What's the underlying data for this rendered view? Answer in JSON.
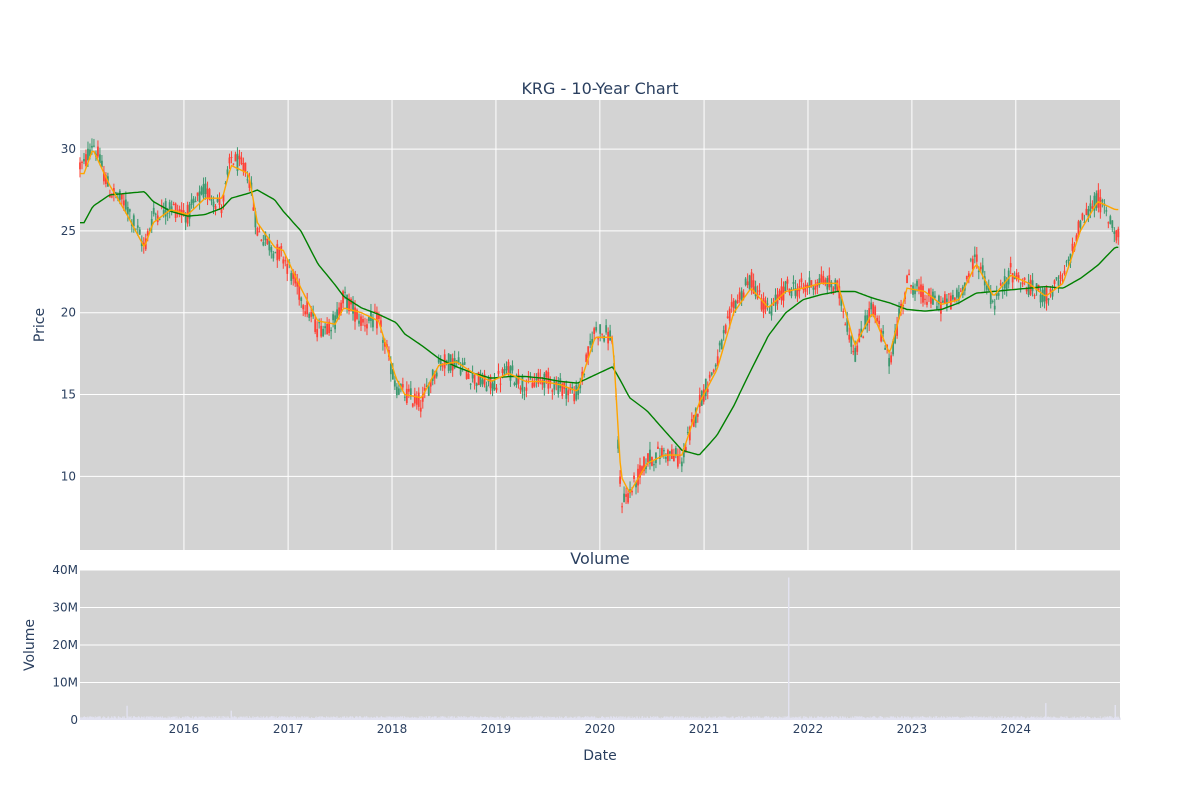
{
  "chart_data": [
    {
      "type": "candlestick",
      "title": "KRG - 10-Year Chart",
      "ylabel": "Price",
      "ylim": [
        5.5,
        33
      ],
      "yticks": [
        10,
        15,
        20,
        25,
        30
      ],
      "xlim": [
        "2015-01-01",
        "2025-01-01"
      ],
      "grid": true,
      "colors": {
        "up": "#3d9970",
        "down": "#ff4136",
        "ma_short": "#ffa500",
        "ma_long": "#008000",
        "background": "#d3d3d3"
      },
      "close_approx": {
        "dates": [
          "2015-01",
          "2015-02",
          "2015-04",
          "2015-06",
          "2015-08",
          "2015-09",
          "2015-11",
          "2016-01",
          "2016-03",
          "2016-05",
          "2016-06",
          "2016-08",
          "2016-09",
          "2016-11",
          "2016-12",
          "2017-02",
          "2017-04",
          "2017-06",
          "2017-07",
          "2017-09",
          "2017-11",
          "2018-01",
          "2018-02",
          "2018-04",
          "2018-06",
          "2018-08",
          "2018-10",
          "2018-12",
          "2019-02",
          "2019-04",
          "2019-06",
          "2019-08",
          "2019-10",
          "2019-12",
          "2020-02",
          "2020-03",
          "2020-04",
          "2020-06",
          "2020-08",
          "2020-10",
          "2020-12",
          "2021-02",
          "2021-04",
          "2021-06",
          "2021-08",
          "2021-10",
          "2021-12",
          "2022-02",
          "2022-04",
          "2022-06",
          "2022-08",
          "2022-10",
          "2022-12",
          "2023-02",
          "2023-04",
          "2023-06",
          "2023-08",
          "2023-10",
          "2023-12",
          "2024-02",
          "2024-04",
          "2024-06",
          "2024-08",
          "2024-10",
          "2024-12"
        ],
        "values": [
          29,
          30.5,
          27.5,
          26.5,
          24,
          26,
          26.5,
          26,
          27.5,
          26.5,
          29.5,
          28.5,
          25,
          23.8,
          23.5,
          21,
          19,
          19.5,
          21,
          19.5,
          19.5,
          15.5,
          15,
          14.5,
          17,
          17,
          16,
          15.5,
          16.5,
          15.5,
          16,
          15.5,
          15,
          19,
          18.5,
          8.5,
          9,
          11,
          11.5,
          11,
          14.5,
          17,
          20.5,
          22,
          20,
          21.5,
          21.5,
          22,
          21.5,
          17.5,
          20.5,
          17,
          22,
          21,
          20.5,
          21,
          23.5,
          20.5,
          22.5,
          21.5,
          21,
          22,
          25.5,
          27,
          25
        ]
      },
      "series": [
        {
          "values": [
            28.5,
            30,
            27.8,
            26,
            24,
            25.5,
            26.3,
            26,
            27,
            27,
            29,
            28.5,
            25.5,
            24,
            23.8,
            21.5,
            19.5,
            19.3,
            20.3,
            20,
            19.5,
            16,
            15,
            14.8,
            16.8,
            17,
            16.3,
            15.8,
            16.3,
            15.8,
            15.8,
            15.6,
            15.2,
            18.5,
            18.5,
            10,
            9,
            10.8,
            11.3,
            11.3,
            14.5,
            16.5,
            20,
            21.5,
            20.3,
            21.3,
            21.5,
            21.8,
            21.8,
            18,
            20,
            17.5,
            21.5,
            21.3,
            20.5,
            20.8,
            23,
            21,
            22.3,
            21.8,
            21,
            21.8,
            25,
            26.8,
            26.3
          ]
        },
        {
          "values": [
            25.5,
            26.5,
            27.2,
            27.3,
            27.4,
            26.8,
            26.2,
            25.9,
            26,
            26.4,
            27,
            27.3,
            27.5,
            26.9,
            26.2,
            25,
            23,
            21.7,
            21,
            20.3,
            19.9,
            19.4,
            18.7,
            18,
            17.2,
            16.7,
            16.3,
            16,
            16.1,
            16.1,
            16,
            15.8,
            15.7,
            16.2,
            16.7,
            15.8,
            14.8,
            14,
            12.8,
            11.6,
            11.3,
            12.5,
            14.3,
            16.5,
            18.6,
            20,
            20.8,
            21.1,
            21.3,
            21.3,
            20.9,
            20.6,
            20.2,
            20.1,
            20.2,
            20.6,
            21.2,
            21.3,
            21.4,
            21.5,
            21.6,
            21.5,
            22.1,
            22.9,
            24
          ]
        }
      ]
    },
    {
      "type": "bar",
      "title": "Volume",
      "xlabel": "Date",
      "ylabel": "Volume",
      "ylim": [
        0,
        40000000
      ],
      "yticks": [
        0,
        10000000,
        20000000,
        30000000,
        40000000
      ],
      "ytick_labels": [
        "0",
        "10M",
        "20M",
        "30M",
        "40M"
      ],
      "x_tick_labels": [
        "2016",
        "2017",
        "2018",
        "2019",
        "2020",
        "2021",
        "2022",
        "2023",
        "2024"
      ],
      "grid": true,
      "colors": {
        "bar": "#e2e2f0"
      },
      "typical_volume": 700000,
      "spikes": [
        {
          "date": "2015-06",
          "value": 3800000
        },
        {
          "date": "2016-06",
          "value": 2500000
        },
        {
          "date": "2021-10-25",
          "value": 38000000
        },
        {
          "date": "2024-04",
          "value": 4500000
        },
        {
          "date": "2024-12",
          "value": 4000000
        }
      ]
    }
  ]
}
